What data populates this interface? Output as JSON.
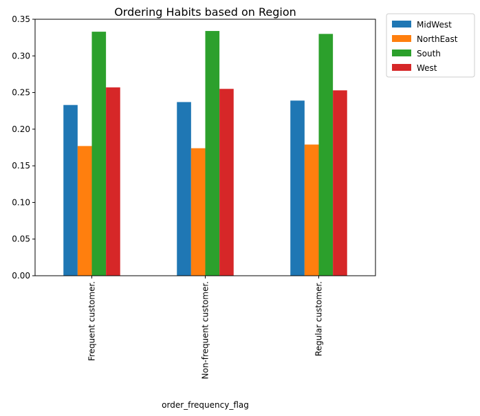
{
  "chart_data": {
    "type": "bar",
    "title": "Ordering Habits based on Region",
    "xlabel": "order_frequency_flag",
    "ylabel": "",
    "categories": [
      "Frequent customer.",
      "Non-frequent customer.",
      "Regular customer."
    ],
    "series": [
      {
        "name": "MidWest",
        "color": "#1f77b4",
        "values": [
          0.233,
          0.237,
          0.239
        ]
      },
      {
        "name": "NorthEast",
        "color": "#ff7f0e",
        "values": [
          0.177,
          0.174,
          0.179
        ]
      },
      {
        "name": "South",
        "color": "#2ca02c",
        "values": [
          0.333,
          0.334,
          0.33
        ]
      },
      {
        "name": "West",
        "color": "#d62728",
        "values": [
          0.257,
          0.255,
          0.253
        ]
      }
    ],
    "ylim": [
      0,
      0.35
    ],
    "yticks": [
      "0.00",
      "0.05",
      "0.10",
      "0.15",
      "0.20",
      "0.25",
      "0.30",
      "0.35"
    ],
    "grid": false,
    "legend_position": "outside-top-right"
  }
}
